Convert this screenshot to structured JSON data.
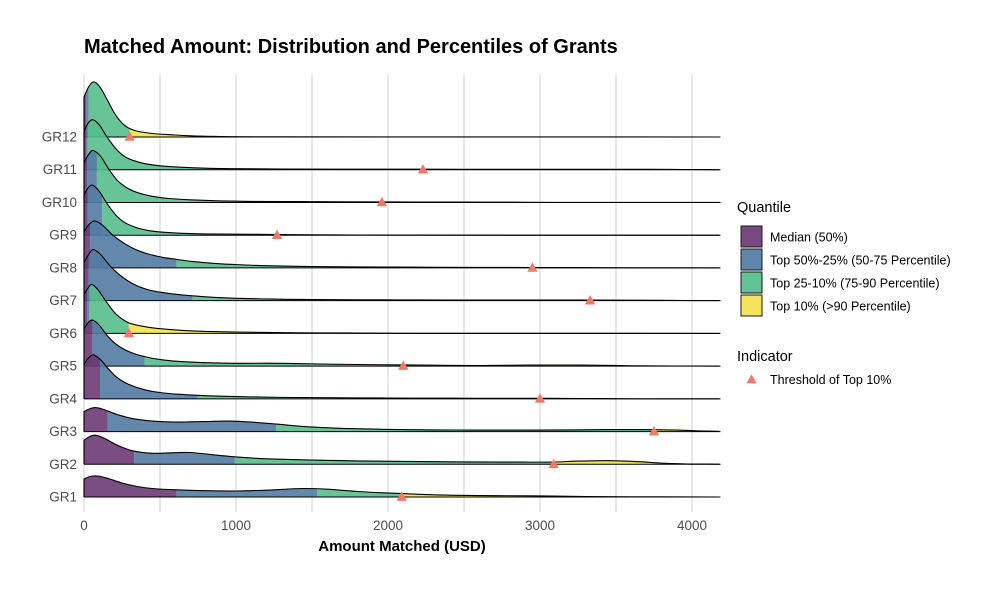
{
  "chart_data": {
    "type": "ridgeline",
    "title": "Matched Amount: Distribution and Percentiles of Grants",
    "xlabel": "Amount Matched (USD)",
    "x_ticks": [
      0,
      1000,
      2000,
      3000,
      4000
    ],
    "x_gridline_step": 500,
    "x_range": [
      0,
      4180
    ],
    "grid": "vertical-only",
    "legend_position": "right",
    "colors": {
      "median": "#6B3A76",
      "q50_75": "#527BA3",
      "q75_90": "#55BE8C",
      "top10": "#F5E14F",
      "threshold": "#F2796A",
      "grid": "#D9D9D9",
      "axis_text": "#4D4D4D",
      "outline": "#000000",
      "background": "#FFFFFF"
    },
    "legend": {
      "quantile_title": "Quantile",
      "items": [
        {
          "label": "Median (50%)",
          "color_key": "median"
        },
        {
          "label": "Top 50%-25% (50-75 Percentile)",
          "color_key": "q50_75"
        },
        {
          "label": "Top 25-10% (75-90 Percentile)",
          "color_key": "q75_90"
        },
        {
          "label": "Top 10% (>90 Percentile)",
          "color_key": "top10"
        }
      ],
      "indicator_title": "Indicator",
      "indicator_label": "Threshold of Top 10%"
    },
    "groups": [
      {
        "label": "GR12",
        "q50": 15,
        "q75": 30,
        "q90": 300,
        "threshold": 300,
        "density": [
          [
            0,
            40
          ],
          [
            30,
            50
          ],
          [
            60,
            55
          ],
          [
            100,
            51
          ],
          [
            150,
            38
          ],
          [
            200,
            24
          ],
          [
            250,
            14
          ],
          [
            300,
            8.5
          ],
          [
            360,
            5.5
          ],
          [
            450,
            3.5
          ],
          [
            580,
            2.2
          ],
          [
            700,
            1.2
          ],
          [
            900,
            0.5
          ],
          [
            1200,
            0.2
          ],
          [
            2000,
            0.08
          ],
          [
            4180,
            0.04
          ]
        ]
      },
      {
        "label": "GR11",
        "q50": 15,
        "q75": 25,
        "q90": 2230,
        "threshold": 2230,
        "density": [
          [
            0,
            38
          ],
          [
            25,
            46
          ],
          [
            55,
            50
          ],
          [
            100,
            45
          ],
          [
            150,
            33
          ],
          [
            210,
            21
          ],
          [
            270,
            13
          ],
          [
            340,
            8.5
          ],
          [
            420,
            5.5
          ],
          [
            520,
            3.6
          ],
          [
            650,
            2.4
          ],
          [
            800,
            1.5
          ],
          [
            1000,
            1
          ],
          [
            1300,
            0.7
          ],
          [
            1700,
            0.55
          ],
          [
            2230,
            0.5
          ],
          [
            2700,
            0.45
          ],
          [
            3200,
            0.42
          ],
          [
            3700,
            0.38
          ],
          [
            3930,
            0.25
          ],
          [
            4100,
            0.08
          ],
          [
            4180,
            0.04
          ]
        ]
      },
      {
        "label": "GR10",
        "q50": 20,
        "q75": 85,
        "q90": 1960,
        "threshold": 1960,
        "density": [
          [
            0,
            40
          ],
          [
            30,
            48
          ],
          [
            60,
            52
          ],
          [
            110,
            46
          ],
          [
            160,
            34
          ],
          [
            220,
            22
          ],
          [
            290,
            14
          ],
          [
            360,
            9.5
          ],
          [
            450,
            6.2
          ],
          [
            560,
            4
          ],
          [
            700,
            2.7
          ],
          [
            900,
            1.6
          ],
          [
            1100,
            1.1
          ],
          [
            1400,
            0.85
          ],
          [
            1700,
            0.7
          ],
          [
            1960,
            0.6
          ],
          [
            2200,
            0.5
          ],
          [
            2500,
            0.38
          ],
          [
            2840,
            0.22
          ],
          [
            3100,
            0.08
          ],
          [
            4180,
            0.03
          ]
        ]
      },
      {
        "label": "GR9",
        "q50": 25,
        "q75": 120,
        "q90": 1270,
        "threshold": 1270,
        "density": [
          [
            0,
            40
          ],
          [
            25,
            47
          ],
          [
            55,
            50
          ],
          [
            100,
            44
          ],
          [
            150,
            32
          ],
          [
            210,
            20
          ],
          [
            270,
            12.5
          ],
          [
            340,
            7.8
          ],
          [
            420,
            4.8
          ],
          [
            520,
            3
          ],
          [
            650,
            1.9
          ],
          [
            800,
            1.3
          ],
          [
            1000,
            0.95
          ],
          [
            1270,
            0.65
          ],
          [
            1500,
            0.4
          ],
          [
            1800,
            0.22
          ],
          [
            2200,
            0.1
          ],
          [
            3000,
            0.04
          ],
          [
            4180,
            0.02
          ]
        ]
      },
      {
        "label": "GR8",
        "q50": 40,
        "q75": 610,
        "q90": 2950,
        "threshold": 2950,
        "density": [
          [
            0,
            36
          ],
          [
            30,
            43
          ],
          [
            70,
            47
          ],
          [
            120,
            43
          ],
          [
            180,
            34
          ],
          [
            250,
            26
          ],
          [
            330,
            19
          ],
          [
            420,
            14
          ],
          [
            520,
            10.5
          ],
          [
            610,
            8.5
          ],
          [
            720,
            6.3
          ],
          [
            850,
            4.6
          ],
          [
            1000,
            3.3
          ],
          [
            1200,
            2.2
          ],
          [
            1500,
            1.4
          ],
          [
            1800,
            1
          ],
          [
            2200,
            0.7
          ],
          [
            2600,
            0.55
          ],
          [
            2950,
            0.45
          ],
          [
            3200,
            0.28
          ],
          [
            3600,
            0.12
          ],
          [
            4180,
            0.04
          ]
        ]
      },
      {
        "label": "GR7",
        "q50": 30,
        "q75": 715,
        "q90": 3330,
        "threshold": 3330,
        "density": [
          [
            0,
            38
          ],
          [
            30,
            46
          ],
          [
            60,
            51
          ],
          [
            110,
            46
          ],
          [
            170,
            35
          ],
          [
            240,
            25
          ],
          [
            320,
            17
          ],
          [
            420,
            11
          ],
          [
            530,
            7.8
          ],
          [
            650,
            5.6
          ],
          [
            715,
            4.8
          ],
          [
            850,
            3.4
          ],
          [
            1000,
            2.4
          ],
          [
            1250,
            1.5
          ],
          [
            1500,
            1.1
          ],
          [
            1800,
            0.85
          ],
          [
            2200,
            0.7
          ],
          [
            2600,
            0.6
          ],
          [
            3000,
            0.55
          ],
          [
            3330,
            0.5
          ],
          [
            3600,
            0.42
          ],
          [
            3800,
            0.3
          ],
          [
            3940,
            0.18
          ],
          [
            4100,
            0.06
          ],
          [
            4180,
            0.03
          ]
        ]
      },
      {
        "label": "GR6",
        "q50": 20,
        "q75": 35,
        "q90": 295,
        "threshold": 295,
        "density": [
          [
            0,
            39
          ],
          [
            25,
            45
          ],
          [
            50,
            49
          ],
          [
            90,
            44
          ],
          [
            140,
            33
          ],
          [
            200,
            21
          ],
          [
            250,
            14.5
          ],
          [
            295,
            10.5
          ],
          [
            350,
            8.2
          ],
          [
            430,
            6
          ],
          [
            530,
            4.3
          ],
          [
            650,
            3
          ],
          [
            800,
            2
          ],
          [
            1000,
            1.3
          ],
          [
            1250,
            0.8
          ],
          [
            1550,
            0.5
          ],
          [
            1800,
            0.28
          ],
          [
            2200,
            0.12
          ],
          [
            2800,
            0.05
          ],
          [
            4180,
            0.02
          ]
        ]
      },
      {
        "label": "GR5",
        "q50": 55,
        "q75": 400,
        "q90": 2100,
        "threshold": 2100,
        "density": [
          [
            0,
            37
          ],
          [
            25,
            43
          ],
          [
            55,
            46
          ],
          [
            100,
            41
          ],
          [
            150,
            31
          ],
          [
            210,
            22
          ],
          [
            280,
            15.5
          ],
          [
            350,
            11.5
          ],
          [
            400,
            9.5
          ],
          [
            480,
            7
          ],
          [
            580,
            5.2
          ],
          [
            700,
            4
          ],
          [
            850,
            3.2
          ],
          [
            1000,
            2.8
          ],
          [
            1200,
            2.9
          ],
          [
            1350,
            2.7
          ],
          [
            1550,
            2.1
          ],
          [
            1800,
            1.6
          ],
          [
            2100,
            1.2
          ],
          [
            2355,
            0.8
          ],
          [
            2600,
            0.6
          ],
          [
            2930,
            1
          ],
          [
            3150,
            1.1
          ],
          [
            3400,
            0.8
          ],
          [
            3600,
            0.35
          ],
          [
            3900,
            0.12
          ],
          [
            4180,
            0.05
          ]
        ]
      },
      {
        "label": "GR4",
        "q50": 105,
        "q75": 748,
        "q90": 3000,
        "threshold": 3000,
        "density": [
          [
            0,
            34
          ],
          [
            25,
            40
          ],
          [
            60,
            44
          ],
          [
            110,
            39
          ],
          [
            160,
            30
          ],
          [
            220,
            21
          ],
          [
            300,
            14
          ],
          [
            400,
            9
          ],
          [
            500,
            6.3
          ],
          [
            620,
            4.6
          ],
          [
            748,
            3.5
          ],
          [
            900,
            2.6
          ],
          [
            1100,
            1.9
          ],
          [
            1400,
            1.3
          ],
          [
            1700,
            1
          ],
          [
            2000,
            0.8
          ],
          [
            2400,
            0.6
          ],
          [
            2700,
            0.5
          ],
          [
            3000,
            0.5
          ],
          [
            3280,
            0.35
          ],
          [
            3500,
            0.18
          ],
          [
            3800,
            0.08
          ],
          [
            4180,
            0.04
          ]
        ]
      },
      {
        "label": "GR3",
        "q50": 155,
        "q75": 1265,
        "q90": 3750,
        "threshold": 3750,
        "density": [
          [
            0,
            20
          ],
          [
            40,
            23
          ],
          [
            80,
            24
          ],
          [
            140,
            21.5
          ],
          [
            220,
            17
          ],
          [
            320,
            13
          ],
          [
            450,
            10.5
          ],
          [
            600,
            9.5
          ],
          [
            780,
            10
          ],
          [
            950,
            10.5
          ],
          [
            1100,
            9.5
          ],
          [
            1265,
            7.5
          ],
          [
            1450,
            5
          ],
          [
            1700,
            3.2
          ],
          [
            2000,
            2.2
          ],
          [
            2300,
            1.7
          ],
          [
            2600,
            1.5
          ],
          [
            2900,
            1.5
          ],
          [
            3200,
            1.7
          ],
          [
            3450,
            2
          ],
          [
            3650,
            2
          ],
          [
            3750,
            1.9
          ],
          [
            3900,
            1.5
          ],
          [
            4050,
            0.7
          ],
          [
            4180,
            0.25
          ]
        ]
      },
      {
        "label": "GR2",
        "q50": 330,
        "q75": 990,
        "q90": 3090,
        "threshold": 3090,
        "density": [
          [
            0,
            24
          ],
          [
            40,
            28
          ],
          [
            80,
            29
          ],
          [
            140,
            25.5
          ],
          [
            220,
            19
          ],
          [
            320,
            13.5
          ],
          [
            450,
            11
          ],
          [
            580,
            11.5
          ],
          [
            700,
            11.8
          ],
          [
            850,
            9.5
          ],
          [
            990,
            7.5
          ],
          [
            1200,
            5.5
          ],
          [
            1500,
            4.2
          ],
          [
            1800,
            3.4
          ],
          [
            2100,
            2.9
          ],
          [
            2500,
            2.4
          ],
          [
            2800,
            2.2
          ],
          [
            3090,
            2.3
          ],
          [
            3250,
            3.2
          ],
          [
            3450,
            3.6
          ],
          [
            3650,
            2.6
          ],
          [
            3790,
            1.2
          ],
          [
            3950,
            0.4
          ],
          [
            4180,
            0.12
          ]
        ]
      },
      {
        "label": "GR1",
        "q50": 610,
        "q75": 1535,
        "q90": 2090,
        "threshold": 2090,
        "density": [
          [
            0,
            18
          ],
          [
            40,
            20.5
          ],
          [
            90,
            21
          ],
          [
            160,
            18.5
          ],
          [
            250,
            14
          ],
          [
            350,
            10.5
          ],
          [
            450,
            8.5
          ],
          [
            610,
            7.2
          ],
          [
            800,
            6.3
          ],
          [
            1000,
            6
          ],
          [
            1200,
            6.8
          ],
          [
            1430,
            8.5
          ],
          [
            1600,
            7.8
          ],
          [
            1800,
            5.5
          ],
          [
            2090,
            3.4
          ],
          [
            2300,
            2.2
          ],
          [
            2600,
            1.4
          ],
          [
            2900,
            1.2
          ],
          [
            3080,
            0.9
          ],
          [
            3300,
            0.4
          ],
          [
            3600,
            0.25
          ],
          [
            4000,
            0.1
          ],
          [
            4180,
            0.06
          ]
        ]
      }
    ]
  }
}
